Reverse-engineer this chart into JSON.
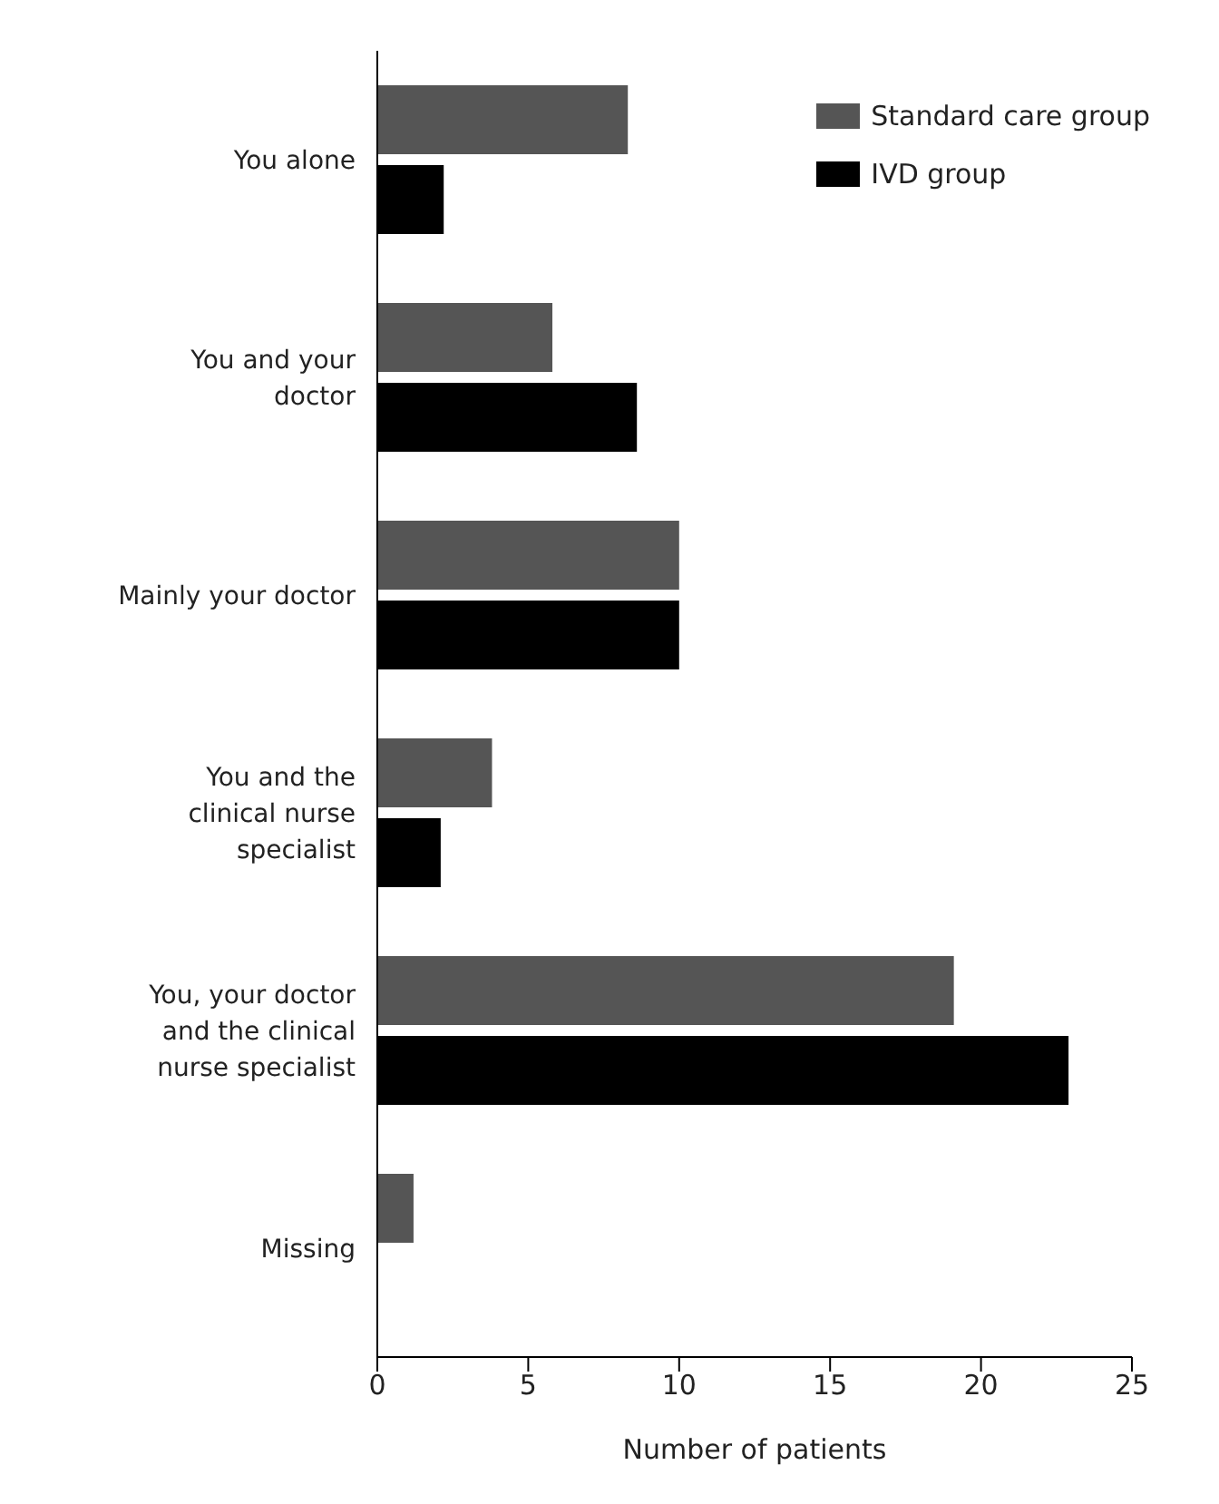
{
  "chart_data": {
    "type": "bar",
    "orientation": "horizontal",
    "xlabel": "Number of patients",
    "categories": [
      "You alone",
      "You and your doctor",
      "Mainly your doctor",
      "You and the clinical nurse specialist",
      "You, your doctor and the clinical nurse specialist",
      "Missing"
    ],
    "series": [
      {
        "name": "Standard care group",
        "color": "#555555",
        "values": [
          8.3,
          5.8,
          10,
          3.8,
          19.1,
          1.2
        ]
      },
      {
        "name": "IVD group",
        "color": "#000000",
        "values": [
          2.2,
          8.6,
          10,
          2.1,
          22.9,
          null
        ]
      }
    ],
    "xlim": [
      0,
      25
    ],
    "xticks": [
      0,
      5,
      10,
      15,
      20,
      25
    ],
    "grid": false,
    "legend": "top right"
  }
}
